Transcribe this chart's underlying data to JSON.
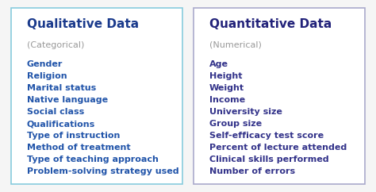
{
  "left_title": "Qualitative Data",
  "left_subtitle": "(Categorical)",
  "left_items": [
    "Gender",
    "Religion",
    "Marital status",
    "Native language",
    "Social class",
    "Qualifications",
    "Type of instruction",
    "Method of treatment",
    "Type of teaching approach",
    "Problem-solving strategy used"
  ],
  "left_title_color": "#1a3a8c",
  "left_subtitle_color": "#999999",
  "left_items_color": "#2255aa",
  "left_border_color": "#88ccdd",
  "right_title": "Quantitative Data",
  "right_subtitle": "(Numerical)",
  "right_items": [
    "Age",
    "Height",
    "Weight",
    "Income",
    "University size",
    "Group size",
    "Self-efficacy test score",
    "Percent of lecture attended",
    "Clinical skills performed",
    "Number of errors"
  ],
  "right_title_color": "#22227a",
  "right_subtitle_color": "#999999",
  "right_items_color": "#33338a",
  "right_border_color": "#aaaacc",
  "bg_color": "#f5f5f5",
  "panel_bg": "#ffffff",
  "title_fontsize": 11,
  "subtitle_fontsize": 8,
  "item_fontsize": 8
}
